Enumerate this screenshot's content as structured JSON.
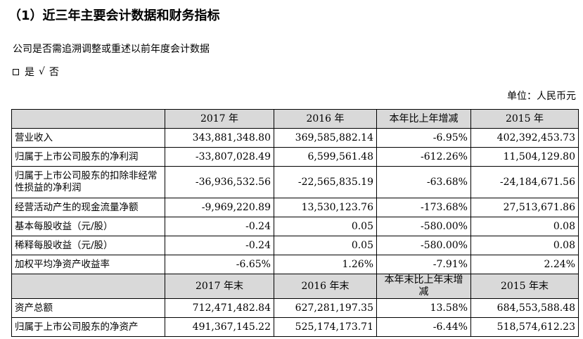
{
  "title": "（1）近三年主要会计数据和财务指标",
  "restatement_question": "公司是否需追溯调整或重述以前年度会计数据",
  "restatement_options": {
    "yes": "是",
    "check": "√",
    "no": "否"
  },
  "unit": "单位：人民币元",
  "table": {
    "header1": [
      "",
      "2017 年",
      "2016 年",
      "本年比上年增减",
      "2015 年"
    ],
    "rows1": [
      [
        "营业收入",
        "343,881,348.80",
        "369,585,882.14",
        "-6.95%",
        "402,392,453.73"
      ],
      [
        "归属于上市公司股东的净利润",
        "-33,807,028.49",
        "6,599,561.48",
        "-612.26%",
        "11,504,129.80"
      ],
      [
        "归属于上市公司股东的扣除非经常性损益的净利润",
        "-36,936,532.56",
        "-22,565,835.19",
        "-63.68%",
        "-24,184,671.56"
      ],
      [
        "经营活动产生的现金流量净额",
        "-9,969,220.89",
        "13,530,123.76",
        "-173.68%",
        "27,513,671.86"
      ],
      [
        "基本每股收益（元/股）",
        "-0.24",
        "0.05",
        "-580.00%",
        "0.08"
      ],
      [
        "稀释每股收益（元/股）",
        "-0.24",
        "0.05",
        "-580.00%",
        "0.08"
      ],
      [
        "加权平均净资产收益率",
        "-6.65%",
        "1.26%",
        "-7.91%",
        "2.24%"
      ]
    ],
    "header2": [
      "",
      "2017 年末",
      "2016 年末",
      "本年末比上年末增减",
      "2015 年末"
    ],
    "rows2": [
      [
        "资产总额",
        "712,471,482.84",
        "627,281,197.35",
        "13.58%",
        "684,553,588.48"
      ],
      [
        "归属于上市公司股东的净资产",
        "491,367,145.22",
        "525,174,173.71",
        "-6.44%",
        "518,574,612.23"
      ]
    ]
  }
}
